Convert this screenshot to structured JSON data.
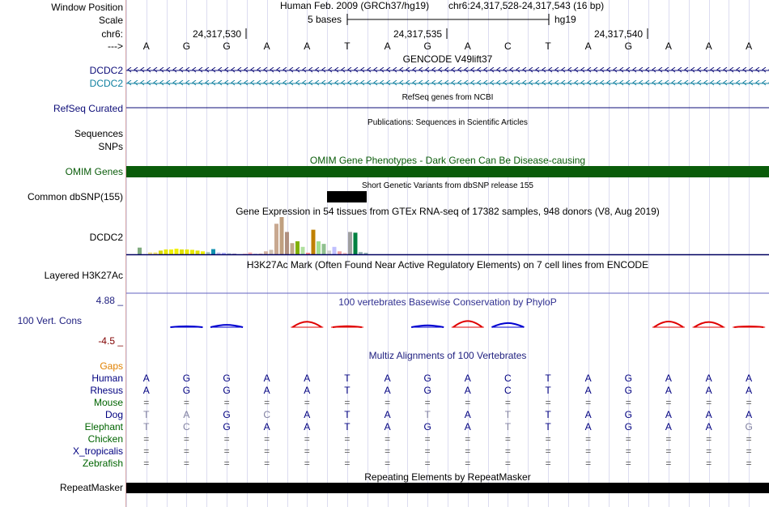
{
  "ruler": {
    "assembly": "Human Feb. 2009 (GRCh37/hg19)",
    "position": "chr6:24,317,528-24,317,543 (16 bp)",
    "scale_text": "5 bases",
    "db": "hg19",
    "ticks": [
      "24,317,530",
      "24,317,535",
      "24,317,540"
    ],
    "arrow": "--->",
    "bases": [
      "A",
      "G",
      "G",
      "A",
      "A",
      "T",
      "A",
      "G",
      "A",
      "C",
      "T",
      "A",
      "G",
      "A",
      "A",
      "A"
    ]
  },
  "labels": {
    "window_position": "Window Position",
    "scale": "Scale",
    "chrom": "chr6:",
    "strand": "--->",
    "dcdc2_a": "DCDC2",
    "dcdc2_b": "DCDC2",
    "refseq": "RefSeq Curated",
    "sequences": "Sequences",
    "snps": "SNPs",
    "omim": "OMIM Genes",
    "dbsnp": "Common dbSNP(155)",
    "gtex": "DCDC2",
    "h3k27ac": "Layered H3K27Ac",
    "phylop_max": "4.88 _",
    "phylop_track": "100 Vert. Cons",
    "phylop_min": "-4.5 _",
    "gaps": "Gaps"
  },
  "tracks": {
    "gencode_title": "GENCODE V49lift37",
    "refseq_title": "RefSeq genes from NCBI",
    "pubs_title": "Publications: Sequences in Scientific Articles",
    "omim_title": "OMIM Gene Phenotypes - Dark Green Can Be Disease-causing",
    "dbsnp_title": "Short Genetic Variants from dbSNP release 155",
    "gtex_title": "Gene Expression in 54 tissues from GTEx RNA-seq of 17382 samples, 948 donors (V8, Aug 2019)",
    "h3k27ac_title": "H3K27Ac Mark (Often Found Near Active Regulatory Elements) on 7 cell lines from ENCODE",
    "phylop_title": "100 vertebrates Basewise Conservation by PhyloP",
    "multiz_title": "Multiz Alignments of 100 Vertebrates",
    "rmsk_title": "Repeating Elements by RepeatMasker",
    "rmsk_label": "RepeatMasker"
  },
  "species": [
    {
      "name": "Human",
      "seq": [
        "A",
        "G",
        "G",
        "A",
        "A",
        "T",
        "A",
        "G",
        "A",
        "C",
        "T",
        "A",
        "G",
        "A",
        "A",
        "A"
      ]
    },
    {
      "name": "Rhesus",
      "seq": [
        "A",
        "G",
        "G",
        "A",
        "A",
        "T",
        "A",
        "G",
        "A",
        "C",
        "T",
        "A",
        "G",
        "A",
        "A",
        "A"
      ]
    },
    {
      "name": "Mouse",
      "seq": [
        "=",
        "=",
        "=",
        "=",
        "=",
        "=",
        "=",
        "=",
        "=",
        "=",
        "=",
        "=",
        "=",
        "=",
        "=",
        "="
      ]
    },
    {
      "name": "Dog",
      "seq": [
        "T",
        "A",
        "G",
        "C",
        "A",
        "T",
        "A",
        "T",
        "A",
        "T",
        "T",
        "A",
        "G",
        "A",
        "A",
        "A"
      ]
    },
    {
      "name": "Elephant",
      "seq": [
        "T",
        "C",
        "G",
        "A",
        "A",
        "T",
        "A",
        "G",
        "A",
        "T",
        "T",
        "A",
        "G",
        "A",
        "A",
        "G"
      ]
    },
    {
      "name": "Chicken",
      "seq": [
        "=",
        "=",
        "=",
        "=",
        "=",
        "=",
        "=",
        "=",
        "=",
        "=",
        "=",
        "=",
        "=",
        "=",
        "=",
        "="
      ]
    },
    {
      "name": "X_tropicalis",
      "seq": [
        "=",
        "=",
        "=",
        "=",
        "=",
        "=",
        "=",
        "=",
        "=",
        "=",
        "=",
        "=",
        "=",
        "=",
        "=",
        "="
      ]
    },
    {
      "name": "Zebrafish",
      "seq": [
        "=",
        "=",
        "=",
        "=",
        "=",
        "=",
        "=",
        "=",
        "=",
        "=",
        "=",
        "=",
        "=",
        "=",
        "=",
        "="
      ]
    }
  ],
  "colors": {
    "gencode": "#0c0c78",
    "gencode_lift": "#1080a0",
    "omim": "#0a5c0a",
    "navy": "#000080",
    "gaps": "#e08000",
    "phylop_pos": "#e00000",
    "phylop_neg": "#0000d0",
    "guide": "#dcdcf0"
  },
  "gtex_values": [
    0.18,
    0,
    0.05,
    0.05,
    0.1,
    0.13,
    0.13,
    0.15,
    0.13,
    0.13,
    0.12,
    0.1,
    0.08,
    0.06,
    0.14,
    0.05,
    0.04,
    0.03,
    0.02,
    0,
    0.02,
    0.05,
    0.02,
    0.02,
    0.08,
    0.12,
    0.82,
    1,
    0.6,
    0.3,
    0.35,
    0.2,
    0.04,
    0.66,
    0.35,
    0.28,
    0.1,
    0.2,
    0.08,
    0.04,
    0.6,
    0.58,
    0.06,
    0.04,
    0,
    0,
    0,
    0,
    0,
    0,
    0,
    0,
    0,
    0
  ],
  "gtex_colors": [
    "#7faa7f",
    "#ffffff",
    "#f0e080",
    "#f0e070",
    "#d8d800",
    "#e8e800",
    "#f0f000",
    "#f0f000",
    "#e0e000",
    "#e8e800",
    "#e8e800",
    "#e0e000",
    "#f0f000",
    "#a0c0c0",
    "#1090b0",
    "#c0c0f0",
    "#b0b0ff",
    "#b0c0d0",
    "#c0b0d0",
    "#ffffff",
    "#ffd0d0",
    "#ffb0b0",
    "#d8d0e0",
    "#e0c0b0",
    "#d0b0a0",
    "#d0c0b0",
    "#c8a890",
    "#c0a080",
    "#b09080",
    "#c0a888",
    "#80b000",
    "#b0e0a0",
    "#ff8080",
    "#c08000",
    "#a0e090",
    "#90c090",
    "#d0d0d0",
    "#c0c0ff",
    "#f0a0a0",
    "#f0c0c0",
    "#a0a0a0",
    "#008040",
    "#90b0b0",
    "#90b0b0",
    "#ffffff",
    "#ffffff",
    "#ffffff",
    "#ffffff",
    "#ffffff",
    "#ffffff",
    "#ffffff",
    "#ffffff",
    "#ffffff",
    "#ffffff"
  ],
  "phylop_values": [
    0,
    -0.35,
    -0.9,
    0,
    2.1,
    0.4,
    0,
    -0.7,
    2.4,
    -1.6,
    0,
    0,
    0,
    2.2,
    2.0,
    0.3
  ]
}
